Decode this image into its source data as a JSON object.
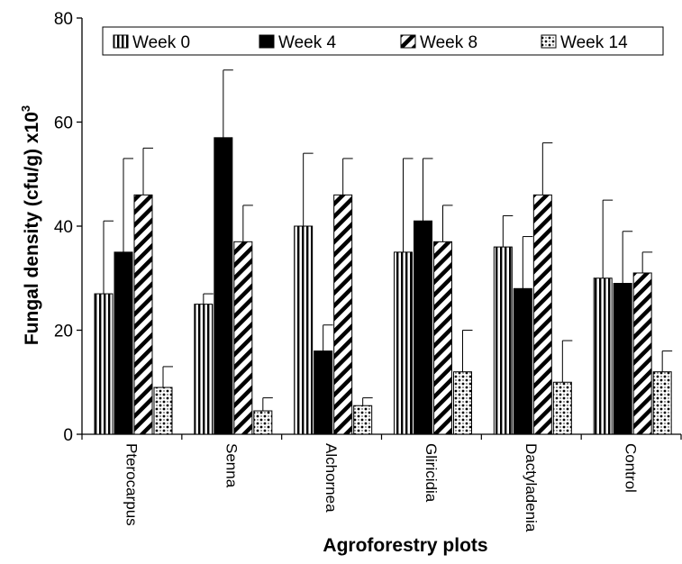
{
  "chart_data": {
    "type": "bar",
    "xlabel": "Agroforestry plots",
    "ylabel_main": "Fungal density (cfu/g) x10",
    "ylabel_sup": "3",
    "ylim": [
      0,
      80
    ],
    "yticks": [
      "0",
      "20",
      "40",
      "60",
      "80"
    ],
    "categories": [
      "Pterocarpus",
      "Senna",
      "Alchornea",
      "Gliricidia",
      "Dactyladenia",
      "Control"
    ],
    "legend_position": "top",
    "grid": false,
    "series": [
      {
        "name": "Week 0",
        "pattern": "vertical-stripes",
        "values": [
          27,
          25,
          40,
          35,
          36,
          30
        ],
        "errors": [
          14,
          2,
          14,
          18,
          6,
          15
        ]
      },
      {
        "name": "Week 4",
        "pattern": "solid-black",
        "values": [
          35,
          57,
          16,
          41,
          28,
          29
        ],
        "errors": [
          18,
          13,
          5,
          12,
          10,
          10
        ]
      },
      {
        "name": "Week 8",
        "pattern": "diagonal-stripes",
        "values": [
          46,
          37,
          46,
          37,
          46,
          31
        ],
        "errors": [
          9,
          7,
          7,
          7,
          10,
          4
        ]
      },
      {
        "name": "Week 14",
        "pattern": "dots",
        "values": [
          9,
          4.5,
          5.5,
          12,
          10,
          12
        ],
        "errors": [
          4,
          2.5,
          1.5,
          8,
          8,
          4
        ]
      }
    ]
  }
}
